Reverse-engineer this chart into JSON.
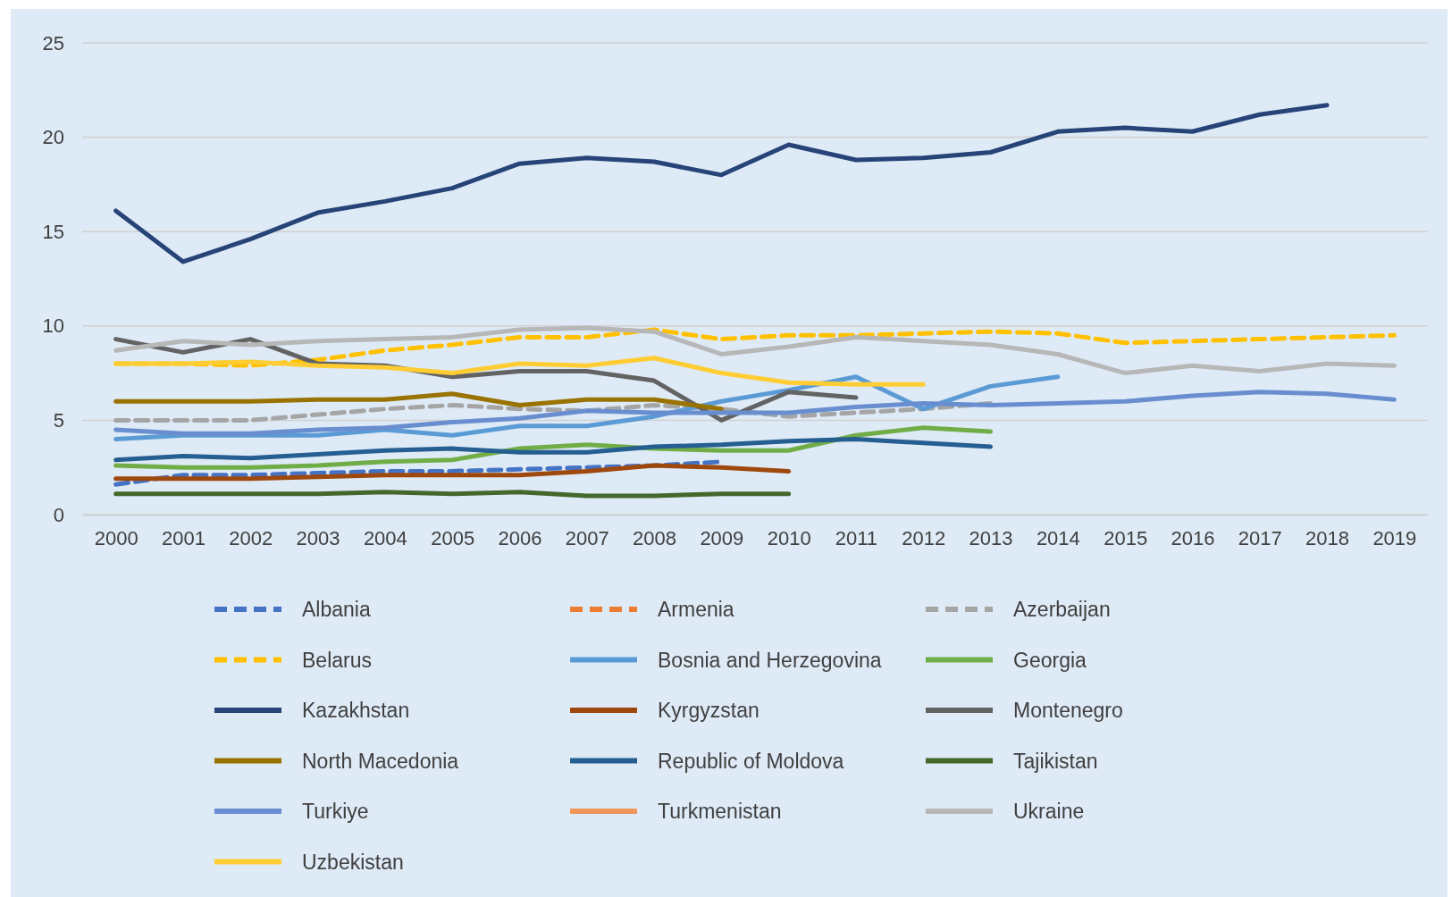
{
  "chart_data": {
    "type": "line",
    "categories": [
      "2000",
      "2001",
      "2002",
      "2003",
      "2004",
      "2005",
      "2006",
      "2007",
      "2008",
      "2009",
      "2010",
      "2011",
      "2012",
      "2013",
      "2014",
      "2015",
      "2016",
      "2017",
      "2018",
      "2019"
    ],
    "ylim": [
      0,
      25
    ],
    "yticks": [
      0,
      5,
      10,
      15,
      20,
      25
    ],
    "grid": "y",
    "legend": "bottom",
    "marker": "none",
    "series": [
      {
        "name": "Albania",
        "color": "#4472c4",
        "line_style": "dashed",
        "values": [
          1.6,
          2.1,
          2.1,
          2.2,
          2.3,
          2.3,
          2.4,
          2.5,
          2.6,
          2.8,
          null,
          null,
          null,
          null,
          null,
          null,
          null,
          null,
          null,
          null
        ]
      },
      {
        "name": "Armenia",
        "color": "#ed7d31",
        "line_style": "dashed",
        "values": [
          null,
          null,
          null,
          null,
          null,
          null,
          null,
          null,
          null,
          null,
          null,
          null,
          null,
          null,
          null,
          null,
          null,
          null,
          null,
          null
        ]
      },
      {
        "name": "Azerbaijan",
        "color": "#a5a5a5",
        "line_style": "dashed",
        "values": [
          5.0,
          5.0,
          5.0,
          5.3,
          5.6,
          5.8,
          5.6,
          5.5,
          5.8,
          5.6,
          5.2,
          5.4,
          5.6,
          5.9,
          null,
          null,
          null,
          null,
          null,
          null
        ]
      },
      {
        "name": "Belarus",
        "color": "#ffc000",
        "line_style": "dashed",
        "values": [
          8.0,
          8.0,
          7.9,
          8.2,
          8.7,
          9.0,
          9.4,
          9.4,
          9.8,
          9.3,
          9.5,
          9.5,
          9.6,
          9.7,
          9.6,
          9.1,
          9.2,
          9.3,
          9.4,
          9.5
        ]
      },
      {
        "name": "Bosnia and Herzegovina",
        "color": "#5b9bd5",
        "line_style": "solid",
        "values": [
          4.0,
          4.2,
          4.2,
          4.2,
          4.5,
          4.2,
          4.7,
          4.7,
          5.2,
          6.0,
          6.6,
          7.3,
          5.6,
          6.8,
          7.3,
          null,
          null,
          null,
          null,
          null
        ]
      },
      {
        "name": "Georgia",
        "color": "#70ad47",
        "line_style": "solid",
        "values": [
          2.6,
          2.5,
          2.5,
          2.6,
          2.8,
          2.9,
          3.5,
          3.7,
          3.5,
          3.4,
          3.4,
          4.2,
          4.6,
          4.4,
          null,
          null,
          null,
          null,
          null,
          null
        ]
      },
      {
        "name": "Kazakhstan",
        "color": "#264478",
        "line_style": "solid",
        "values": [
          16.1,
          13.4,
          14.6,
          16.0,
          16.6,
          17.3,
          18.6,
          18.9,
          18.7,
          18.0,
          19.6,
          18.8,
          18.9,
          19.2,
          20.3,
          20.5,
          20.3,
          21.2,
          21.7,
          null
        ]
      },
      {
        "name": "Kyrgyzstan",
        "color": "#9e480e",
        "line_style": "solid",
        "values": [
          1.9,
          1.9,
          1.9,
          2.0,
          2.1,
          2.1,
          2.1,
          2.3,
          2.6,
          2.5,
          2.3,
          null,
          null,
          null,
          null,
          null,
          null,
          null,
          null,
          null
        ]
      },
      {
        "name": "Montenegro",
        "color": "#636363",
        "line_style": "solid",
        "values": [
          9.3,
          8.6,
          9.3,
          8.0,
          7.9,
          7.3,
          7.6,
          7.6,
          7.1,
          5.0,
          6.5,
          6.2,
          null,
          null,
          null,
          null,
          null,
          null,
          null,
          null
        ]
      },
      {
        "name": "North Macedonia",
        "color": "#997300",
        "line_style": "solid",
        "values": [
          6.0,
          6.0,
          6.0,
          6.1,
          6.1,
          6.4,
          5.8,
          6.1,
          6.1,
          5.6,
          null,
          null,
          null,
          null,
          null,
          null,
          null,
          null,
          null,
          null
        ]
      },
      {
        "name": "Republic of Moldova",
        "color": "#255e91",
        "line_style": "solid",
        "values": [
          2.9,
          3.1,
          3.0,
          3.2,
          3.4,
          3.5,
          3.3,
          3.3,
          3.6,
          3.7,
          3.9,
          4.0,
          3.8,
          3.6,
          null,
          null,
          null,
          null,
          null,
          null
        ]
      },
      {
        "name": "Tajikistan",
        "color": "#43682b",
        "line_style": "solid",
        "values": [
          1.1,
          1.1,
          1.1,
          1.1,
          1.2,
          1.1,
          1.2,
          1.0,
          1.0,
          1.1,
          1.1,
          null,
          null,
          null,
          null,
          null,
          null,
          null,
          null,
          null
        ]
      },
      {
        "name": "Turkiye",
        "color": "#698ed0",
        "line_style": "solid",
        "values": [
          4.5,
          4.3,
          4.3,
          4.5,
          4.6,
          4.9,
          5.1,
          5.5,
          5.4,
          5.4,
          5.4,
          5.7,
          5.9,
          5.8,
          5.9,
          6.0,
          6.3,
          6.5,
          6.4,
          6.1
        ]
      },
      {
        "name": "Turkmenistan",
        "color": "#f1975a",
        "line_style": "solid",
        "values": [
          null,
          null,
          null,
          null,
          null,
          null,
          null,
          null,
          null,
          null,
          null,
          null,
          null,
          null,
          null,
          null,
          null,
          null,
          null,
          null
        ]
      },
      {
        "name": "Ukraine",
        "color": "#b7b7b7",
        "line_style": "solid",
        "values": [
          8.7,
          9.2,
          9.0,
          9.2,
          9.3,
          9.4,
          9.8,
          9.9,
          9.7,
          8.5,
          8.9,
          9.4,
          9.2,
          9.0,
          8.5,
          7.5,
          7.9,
          7.6,
          8.0,
          7.9
        ]
      },
      {
        "name": "Uzbekistan",
        "color": "#ffcd33",
        "line_style": "solid",
        "values": [
          8.0,
          8.0,
          8.1,
          7.9,
          7.8,
          7.5,
          8.0,
          7.9,
          8.3,
          7.5,
          7.0,
          6.9,
          6.9,
          null,
          null,
          null,
          null,
          null,
          null,
          null
        ]
      }
    ]
  }
}
